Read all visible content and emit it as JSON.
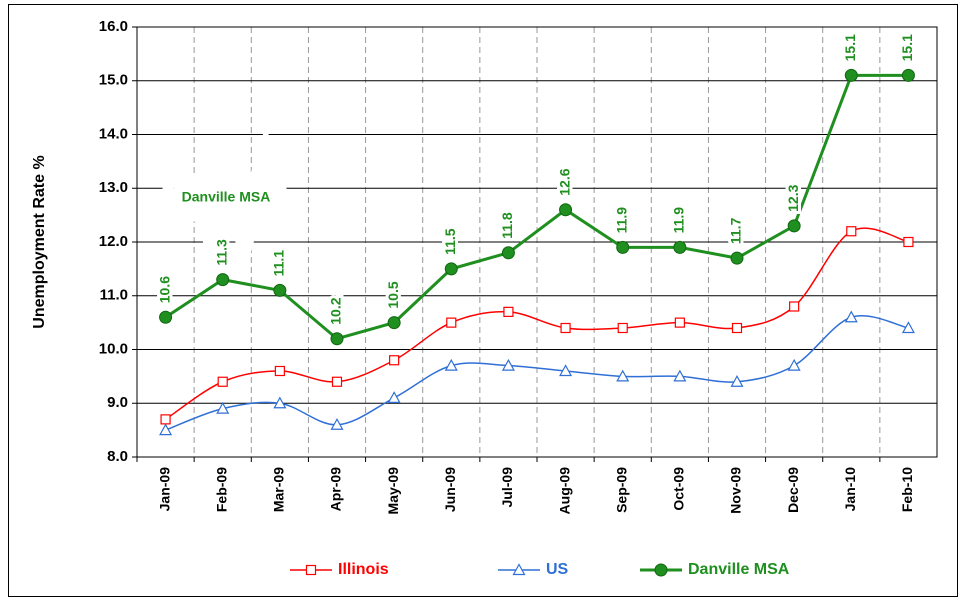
{
  "chart_data": {
    "type": "line",
    "y_label": "Unemployment Rate %",
    "annotation": "Danville MSA",
    "categories": [
      "Jan-09",
      "Feb-09",
      "Mar-09",
      "Apr-09",
      "May-09",
      "Jun-09",
      "Jul-09",
      "Aug-09",
      "Sep-09",
      "Oct-09",
      "Nov-09",
      "Dec-09",
      "Jan-10",
      "Feb-10"
    ],
    "series": [
      {
        "name": "Illinois",
        "color": "#ff0000",
        "marker": "square",
        "smooth": true,
        "values": [
          8.7,
          9.4,
          9.6,
          9.4,
          9.8,
          10.5,
          10.7,
          10.4,
          10.4,
          10.5,
          10.4,
          10.8,
          12.2,
          12.0
        ]
      },
      {
        "name": "US",
        "color": "#2f6fd6",
        "marker": "triangle",
        "smooth": true,
        "values": [
          8.5,
          8.9,
          9.0,
          8.6,
          9.1,
          9.7,
          9.7,
          9.6,
          9.5,
          9.5,
          9.4,
          9.7,
          10.6,
          10.4
        ]
      },
      {
        "name": "Danville MSA",
        "color": "#1f8f1f",
        "marker": "circle",
        "smooth": false,
        "data_labels": true,
        "values": [
          10.6,
          11.3,
          11.1,
          10.2,
          10.5,
          11.5,
          11.8,
          12.6,
          11.9,
          11.9,
          11.7,
          12.3,
          15.1,
          15.1
        ]
      }
    ],
    "ylim": [
      8,
      16
    ],
    "yticks": [
      {
        "value": 8,
        "label": "8.0"
      },
      {
        "value": 9,
        "label": "9.0"
      },
      {
        "value": 10,
        "label": "10.0"
      },
      {
        "value": 11,
        "label": "11.0"
      },
      {
        "value": 12,
        "label": "12.0"
      },
      {
        "value": 13,
        "label": "13.0"
      },
      {
        "value": 14,
        "label": "14.0"
      },
      {
        "value": 15,
        "label": "15.0"
      },
      {
        "value": 16,
        "label": "16.0"
      }
    ],
    "grid": true,
    "legend": "bottom"
  }
}
